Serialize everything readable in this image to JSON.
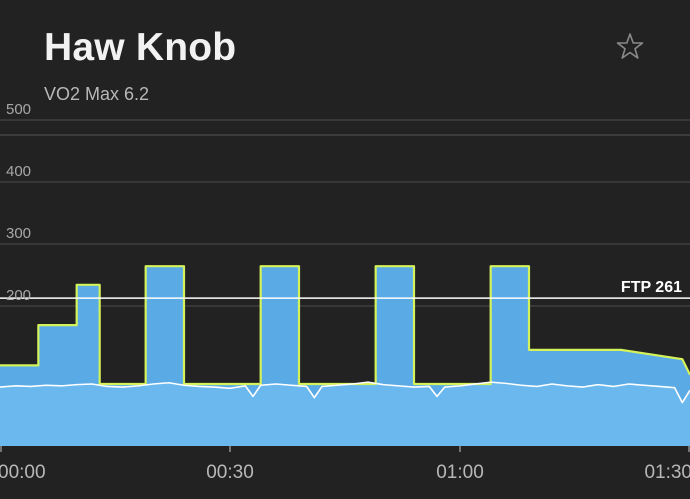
{
  "header": {
    "title": "Haw Knob",
    "subtitle": "VO2 Max 6.2",
    "favorite_icon": "star-outline-icon"
  },
  "colors": {
    "background": "#222222",
    "power_fill": "#5aaae6",
    "target_line": "#d4f25a",
    "actual_line": "#ffffff",
    "ftp_line": "#ffffff",
    "grid": "#444444"
  },
  "chart_data": {
    "type": "area",
    "xlabel": "",
    "ylabel": "",
    "x_ticks": [
      "00:00",
      "00:30",
      "01:00",
      "01:30"
    ],
    "x_tick_minutes": [
      0,
      30,
      60,
      90
    ],
    "y_ticks": [
      200,
      300,
      400,
      500
    ],
    "xlim": [
      0,
      90
    ],
    "ylim": [
      0,
      500
    ],
    "ftp": {
      "label": "FTP 261",
      "value": 261
    },
    "target_power": {
      "x": [
        0,
        5,
        5,
        10,
        10,
        13,
        13,
        19,
        19,
        24,
        24,
        34,
        34,
        39,
        39,
        49,
        49,
        54,
        54,
        64,
        64,
        69,
        69,
        81,
        81,
        89,
        90
      ],
      "y": [
        130,
        130,
        195,
        195,
        260,
        260,
        100,
        100,
        290,
        290,
        100,
        100,
        290,
        290,
        100,
        100,
        290,
        290,
        100,
        100,
        290,
        290,
        155,
        155,
        155,
        140,
        115
      ]
    },
    "actual_power": {
      "x": [
        0,
        2,
        4,
        6,
        8,
        10,
        12,
        14,
        16,
        18,
        20,
        22,
        24,
        26,
        28,
        30,
        32,
        33,
        34,
        36,
        38,
        40,
        41,
        42,
        44,
        46,
        48,
        50,
        52,
        54,
        56,
        57,
        58,
        60,
        62,
        64,
        66,
        68,
        70,
        72,
        74,
        76,
        78,
        80,
        82,
        84,
        86,
        88,
        89,
        90
      ],
      "y": [
        95,
        97,
        96,
        98,
        97,
        99,
        100,
        96,
        95,
        97,
        100,
        102,
        98,
        96,
        95,
        93,
        97,
        80,
        98,
        100,
        98,
        96,
        78,
        96,
        98,
        100,
        103,
        99,
        97,
        95,
        96,
        80,
        95,
        97,
        100,
        103,
        101,
        98,
        96,
        100,
        97,
        95,
        99,
        96,
        100,
        98,
        96,
        94,
        70,
        90
      ]
    }
  }
}
